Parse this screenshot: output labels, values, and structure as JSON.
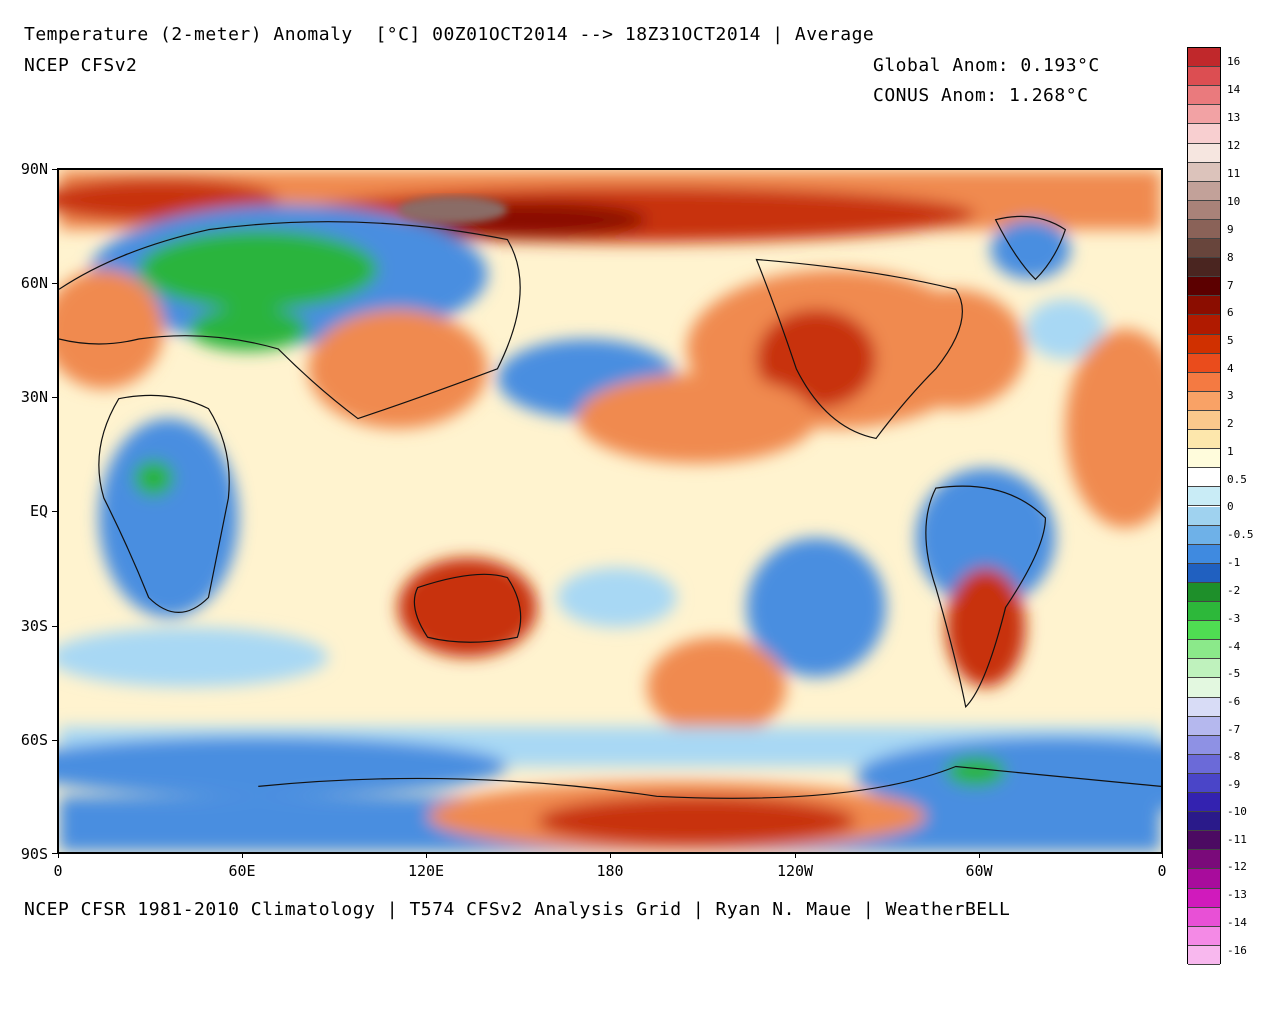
{
  "header": {
    "title": "Temperature (2-meter) Anomaly  [°C] 00Z01OCT2014 --> 18Z31OCT2014 | Average",
    "model": "NCEP CFSv2",
    "global_anom": "Global Anom: 0.193°C",
    "conus_anom": "CONUS Anom: 1.268°C"
  },
  "footer": "NCEP CFSR 1981-2010 Climatology | T574 CFSv2 Analysis Grid | Ryan N. Maue | WeatherBELL",
  "lat_labels": [
    "90N",
    "60N",
    "30N",
    "EQ",
    "30S",
    "60S",
    "90S"
  ],
  "lon_labels": [
    "0",
    "60E",
    "120E",
    "180",
    "120W",
    "60W",
    "0"
  ],
  "colorbar": {
    "labels": [
      "16",
      "14",
      "13",
      "12",
      "11",
      "10",
      "9",
      "8",
      "7",
      "6",
      "5",
      "4",
      "3",
      "2",
      "1",
      "0.5",
      "0",
      "-0.5",
      "-1",
      "-2",
      "-3",
      "-4",
      "-5",
      "-6",
      "-7",
      "-8",
      "-9",
      "-10",
      "-11",
      "-12",
      "-13",
      "-14",
      "-16"
    ],
    "colors": [
      "#c0282b",
      "#dc4e52",
      "#ea7a7d",
      "#f2a2a4",
      "#f8cfd0",
      "#f6e6e0",
      "#dcc3bb",
      "#c2a199",
      "#a98279",
      "#8a6258",
      "#68453c",
      "#4a2520",
      "#5c0000",
      "#8b0d00",
      "#b01a00",
      "#d03000",
      "#ea4c1c",
      "#f47a42",
      "#f9a266",
      "#fbc98c",
      "#fde7ac",
      "#fffcdc",
      "#ffffff",
      "#c9ecf6",
      "#9fd2ef",
      "#6eb1e8",
      "#3f8ae0",
      "#2060c0",
      "#1e8f2a",
      "#2db83a",
      "#4fdd52",
      "#8be98a",
      "#bff2bd",
      "#e3f8e0",
      "#d8dcf6",
      "#b5b8ee",
      "#8e91e4",
      "#6b6ad8",
      "#4a45c8",
      "#3322b0",
      "#2a1a8a",
      "#4c0a62",
      "#7a0a7a",
      "#a80c9c",
      "#d01abc",
      "#e850d6",
      "#f48ae6",
      "#f8b8ee"
    ],
    "color_names": "red to brown to dark red to orange to white to blue to green to purple to magenta"
  },
  "map": {
    "background": "#fff3cf",
    "warm": "#f08a50",
    "hot": "#c83010",
    "very_hot": "#8a0c00",
    "cold": "#4a8ee0",
    "cool": "#a8d8f4",
    "very_cold": "#2ab43c",
    "brown": "#8a6c66"
  }
}
